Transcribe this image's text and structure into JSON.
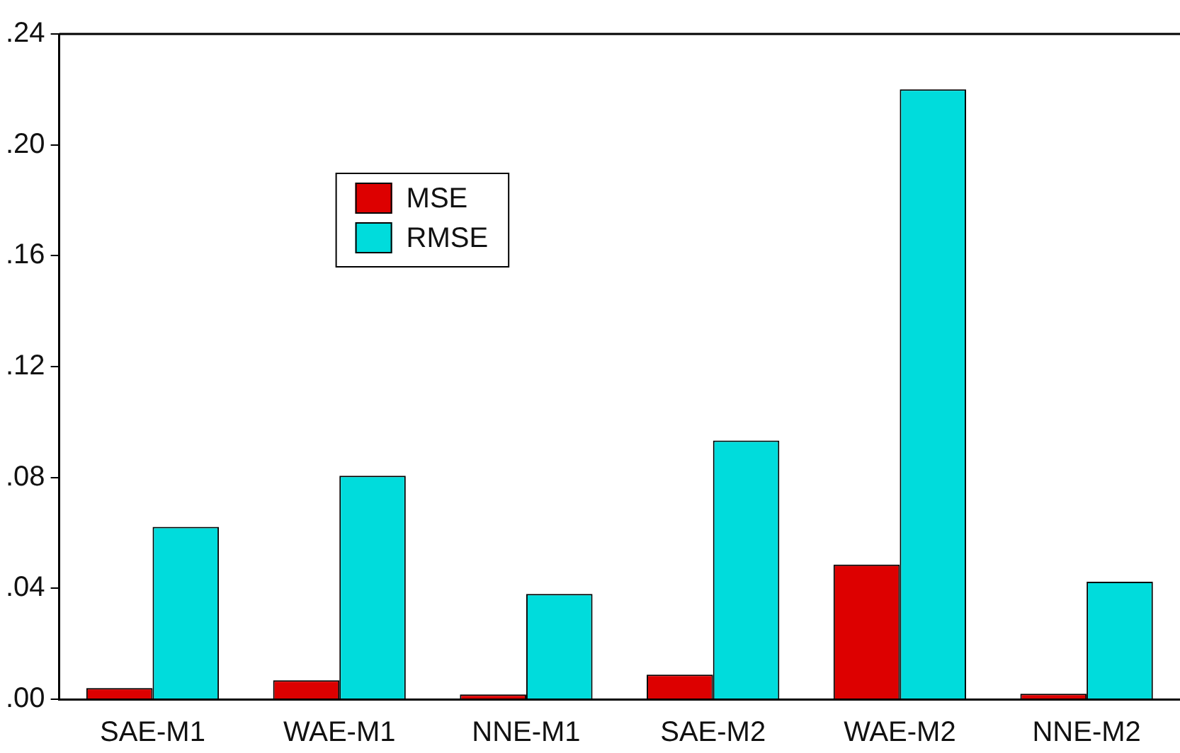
{
  "chart_data": {
    "type": "bar",
    "categories": [
      "SAE-M1",
      "WAE-M1",
      "NNE-M1",
      "SAE-M2",
      "WAE-M2",
      "NNE-M2"
    ],
    "series": [
      {
        "name": "MSE",
        "color": "#dd0000",
        "values": [
          0.004,
          0.0068,
          0.0017,
          0.0089,
          0.0486,
          0.002
        ]
      },
      {
        "name": "RMSE",
        "color": "#00dcdc",
        "values": [
          0.0622,
          0.0806,
          0.038,
          0.0933,
          0.22,
          0.0424
        ]
      }
    ],
    "ylim": [
      0,
      0.24
    ],
    "yticks": [
      {
        "value": 0,
        "label": ".00"
      },
      {
        "value": 0.04,
        "label": ".04"
      },
      {
        "value": 0.08,
        "label": ".08"
      },
      {
        "value": 0.12,
        "label": ".12"
      },
      {
        "value": 0.16,
        "label": ".16"
      },
      {
        "value": 0.2,
        "label": ".20"
      },
      {
        "value": 0.24,
        "label": ".24"
      }
    ],
    "grid": false,
    "legend": "top left"
  }
}
